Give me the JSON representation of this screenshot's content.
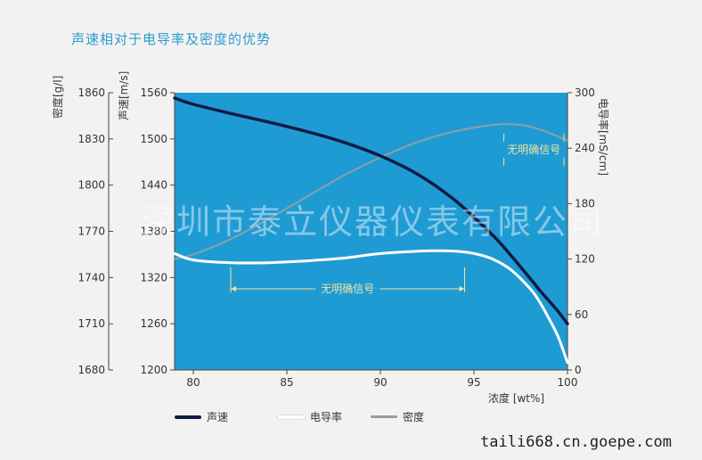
{
  "title": "声速相对于电导率及密度的优势",
  "axes": {
    "density_title": "密度[g/l]",
    "speed_title": "声速[m/s]",
    "cond_title": "电导率[mS/cm]",
    "x_title": "浓度 [wt%]"
  },
  "legend": {
    "speed": "声速",
    "conductivity": "电导率",
    "density": "密度"
  },
  "annotations": {
    "density_ambiguous": "无明确信号",
    "conductivity_ambiguous": "无明确信号"
  },
  "watermark": "深圳市泰立仪器仪表有限公司",
  "site": "taili668.cn.goepe.com",
  "colors": {
    "plot_bg": "#1f9bd4",
    "speed": "#0f1a45",
    "conductivity": "#ffffff",
    "density": "#8f9ea8",
    "annotation": "#f0e3a0",
    "title": "#2b9bd3"
  },
  "chart_data": {
    "type": "line",
    "title": "声速相对于电导率及密度的优势",
    "xlabel": "浓度 [wt%]",
    "xlim": [
      79,
      100
    ],
    "xticks": [
      80,
      85,
      90,
      95,
      100
    ],
    "axes": {
      "density": {
        "label": "密度[g/l]",
        "ylim": [
          1680,
          1860
        ],
        "ticks": [
          1680,
          1710,
          1740,
          1770,
          1800,
          1830,
          1860
        ]
      },
      "speed": {
        "label": "声速[m/s]",
        "ylim": [
          1200,
          1560
        ],
        "ticks": [
          1200,
          1260,
          1320,
          1380,
          1440,
          1500,
          1560
        ]
      },
      "conductivity": {
        "label": "电导率[mS/cm]",
        "ylim": [
          0,
          300
        ],
        "ticks": [
          0,
          60,
          120,
          180,
          240,
          300
        ]
      }
    },
    "series": [
      {
        "name": "声速",
        "axis": "speed",
        "x": [
          79,
          80,
          82,
          84,
          86,
          88,
          90,
          92,
          94,
          96,
          97,
          98,
          98.5,
          99,
          99.5,
          100
        ],
        "y": [
          1553,
          1545,
          1533,
          1522,
          1510,
          1496,
          1478,
          1454,
          1420,
          1375,
          1348,
          1319,
          1304,
          1290,
          1276,
          1260
        ]
      },
      {
        "name": "电导率",
        "axis": "conductivity",
        "x": [
          79,
          80,
          82,
          84,
          86,
          88,
          90,
          92,
          93,
          94,
          95,
          96,
          97,
          98,
          98.5,
          99,
          99.5,
          100
        ],
        "y": [
          126,
          119,
          116,
          116,
          118,
          121,
          126,
          128.5,
          129,
          128.5,
          126,
          120,
          108,
          88,
          74,
          56,
          36,
          8
        ]
      },
      {
        "name": "密度",
        "axis": "density",
        "x": [
          79,
          80,
          82,
          84,
          86,
          88,
          90,
          92,
          94,
          96,
          97,
          98,
          99,
          100
        ],
        "y": [
          1752,
          1755,
          1765,
          1778,
          1792,
          1806,
          1818,
          1828,
          1835,
          1839,
          1839.5,
          1838,
          1834,
          1829
        ]
      }
    ],
    "annotations": [
      {
        "text": "无明确信号",
        "series": "密度",
        "x_range": [
          96.6,
          100
        ]
      },
      {
        "text": "无明确信号",
        "series": "电导率",
        "x_range": [
          82,
          94.5
        ]
      }
    ],
    "grid": false,
    "legend_position": "bottom-left"
  }
}
